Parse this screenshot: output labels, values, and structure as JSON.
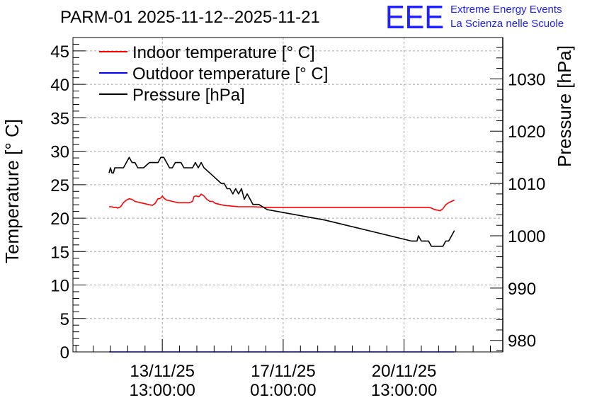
{
  "chart_data": {
    "type": "line",
    "title": "PARM-01 2025-11-12--2025-11-21",
    "branding": {
      "logo_text": "EEE",
      "line1": "Extreme Energy Events",
      "line2": "La Scienza nelle Scuole"
    },
    "left_axis": {
      "label": "Temperature [° C]",
      "range": [
        0,
        47
      ],
      "ticks": [
        0,
        5,
        10,
        15,
        20,
        25,
        30,
        35,
        40,
        45
      ]
    },
    "right_axis": {
      "label": "Pressure [hPa]",
      "range": [
        977.8,
        1037.9
      ],
      "ticks": [
        980,
        990,
        1000,
        1010,
        1020,
        1030
      ]
    },
    "x_axis": {
      "unit": "hours since 2025-11-12 00:00",
      "range": [
        -25.1,
        273.6
      ],
      "ticks": [
        {
          "x": 37,
          "line1": "13/11/25",
          "line2": "13:00:00"
        },
        {
          "x": 121,
          "line1": "17/11/25",
          "line2": "01:00:00"
        },
        {
          "x": 205,
          "line1": "20/11/25",
          "line2": "13:00:00"
        }
      ]
    },
    "grid": true,
    "legend_position": "top-left",
    "series": [
      {
        "name": "Indoor temperature [° C]",
        "color": "#ff0000",
        "axis": "left",
        "x": [
          0,
          2,
          3,
          4,
          5,
          6,
          8,
          10,
          12,
          14,
          16,
          18,
          20,
          22,
          26,
          30,
          32,
          34,
          35,
          36,
          37,
          38,
          40,
          42,
          44,
          46,
          48,
          50,
          52,
          54,
          56,
          58,
          59,
          60,
          61,
          62,
          63,
          64,
          66,
          68,
          70,
          72,
          74,
          76,
          78,
          80,
          85,
          90,
          100,
          110,
          120,
          150,
          180,
          200,
          210,
          214,
          218,
          220,
          222,
          224,
          226,
          228,
          230,
          232,
          234,
          236,
          238,
          240
        ],
        "values": [
          21.7,
          21.7,
          21.6,
          21.6,
          21.6,
          21.5,
          21.7,
          22.3,
          22.7,
          22.9,
          22.8,
          22.5,
          22.4,
          22.3,
          22.1,
          21.9,
          22.2,
          22.9,
          22.9,
          23.0,
          23.3,
          23.0,
          22.7,
          22.6,
          22.5,
          22.4,
          22.3,
          22.3,
          22.3,
          22.3,
          22.3,
          22.5,
          23.2,
          23.3,
          23.3,
          23.2,
          23.3,
          23.6,
          23.3,
          22.8,
          22.5,
          22.5,
          22.2,
          22.1,
          22.0,
          21.9,
          21.8,
          21.7,
          21.7,
          21.6,
          21.6,
          21.6,
          21.6,
          21.6,
          21.6,
          21.6,
          21.6,
          21.6,
          21.6,
          21.5,
          21.3,
          21.2,
          21.1,
          21.4,
          22.0,
          22.3,
          22.5,
          22.7
        ]
      },
      {
        "name": "Outdoor temperature [° C]",
        "color": "#0000ff",
        "axis": "left",
        "x": [
          0,
          240
        ],
        "values": [
          0,
          0
        ]
      },
      {
        "name": "Pressure [hPa]",
        "color": "#000000",
        "axis": "right",
        "x": [
          0,
          1,
          2,
          3,
          4,
          6,
          8,
          10,
          12,
          14,
          16,
          18,
          20,
          24,
          28,
          32,
          34,
          36,
          38,
          40,
          42,
          44,
          46,
          50,
          52,
          54,
          56,
          58,
          60,
          62,
          64,
          66,
          70,
          74,
          78,
          80,
          82,
          84,
          86,
          88,
          90,
          92,
          94,
          96,
          98,
          100,
          104,
          110,
          150,
          210,
          214,
          215,
          217,
          219,
          222,
          224,
          226,
          228,
          230,
          232,
          234,
          236,
          238,
          240
        ],
        "values": [
          1012,
          1013,
          1012,
          1012,
          1013,
          1013,
          1013,
          1013,
          1014,
          1015,
          1014,
          1014,
          1013,
          1013,
          1014,
          1014,
          1014,
          1015,
          1015,
          1014,
          1013,
          1013,
          1014,
          1014,
          1013,
          1013,
          1013,
          1013,
          1014,
          1013,
          1014,
          1013,
          1012,
          1011,
          1010,
          1010,
          1009,
          1009,
          1008,
          1009,
          1008,
          1009,
          1007,
          1008,
          1007,
          1006,
          1006,
          1005,
          1003,
          999,
          999,
          1000,
          999,
          999,
          999,
          998,
          998,
          998,
          998,
          998,
          999,
          999,
          1000,
          1001
        ]
      }
    ]
  }
}
